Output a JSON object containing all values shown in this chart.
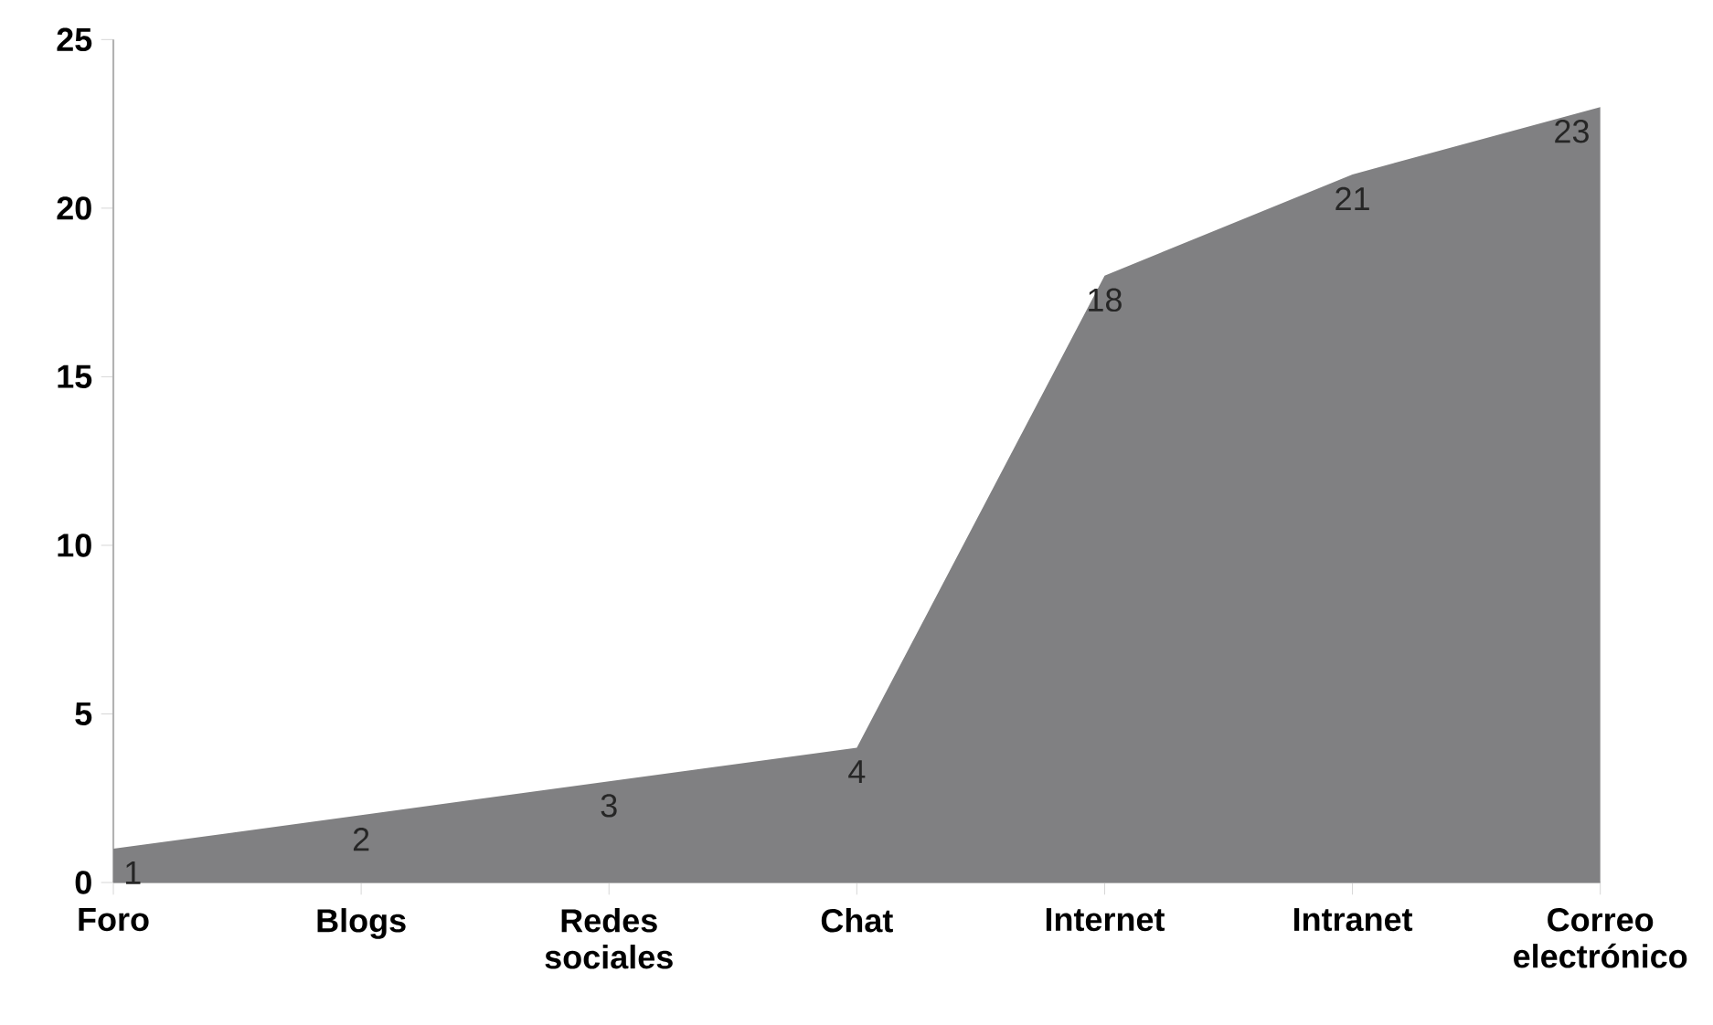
{
  "chart_data": {
    "type": "area",
    "categories": [
      "Foro",
      "Blogs",
      "Redes sociales",
      "Chat",
      "Internet",
      "Intranet",
      "Correo electrónico"
    ],
    "values": [
      1,
      2,
      3,
      4,
      18,
      21,
      23
    ],
    "color": "#808082",
    "ylim": [
      0,
      25
    ],
    "yticks": [
      0,
      5,
      10,
      15,
      20,
      25
    ],
    "data_labels": true
  }
}
